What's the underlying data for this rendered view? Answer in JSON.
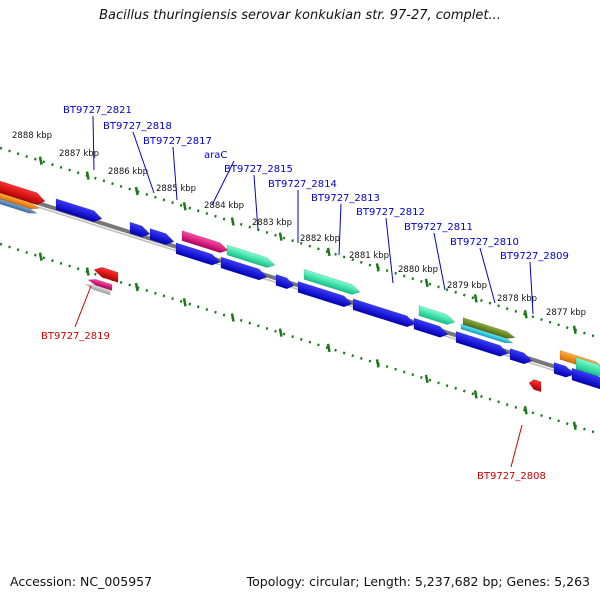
{
  "title": "Bacillus thuringiensis serovar konkukian str. 97-27, complet...",
  "footer": {
    "accession": "Accession: NC_005957",
    "summary": "Topology: circular; Length: 5,237,682 bp; Genes: 5,263"
  },
  "ticks": [
    "2888 kbp",
    "2887 kbp",
    "2886 kbp",
    "2885 kbp",
    "2884 kbp",
    "2883 kbp",
    "2882 kbp",
    "2881 kbp",
    "2880 kbp",
    "2879 kbp",
    "2878 kbp",
    "2877 kbp"
  ],
  "forward_labels": [
    "BT9727_2821",
    "BT9727_2818",
    "BT9727_2817",
    "araC",
    "BT9727_2815",
    "BT9727_2814",
    "BT9727_2813",
    "BT9727_2812",
    "BT9727_2811",
    "BT9727_2810",
    "BT9727_2809"
  ],
  "reverse_labels": [
    "BT9727_2819",
    "BT9727_2808"
  ],
  "colors": {
    "forward_label": "#0000cc",
    "reverse_label": "#cc0000",
    "gene_blue": "#0000e0",
    "gene_red": "#ff0000",
    "gene_pink": "#e8117f",
    "gene_teal": "#22e6a8",
    "gene_olive": "#6b8e23",
    "gene_orange": "#ff8c00",
    "backbone": "#808080",
    "tick_dots": "#1a7a1a"
  }
}
